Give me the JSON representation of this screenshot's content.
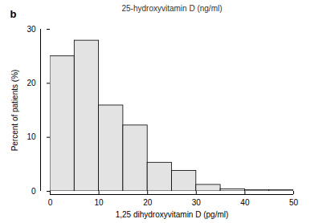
{
  "chart_data": {
    "type": "histogram",
    "title": "b",
    "annotations": [
      "25-hydroxyvitamin D (ng/ml)"
    ],
    "xlabel": "1,25 dihydroxyvitamin D (pg/ml)",
    "ylabel": "Percent of patients (%)",
    "bins": [
      0,
      5,
      10,
      15,
      20,
      25,
      30,
      35,
      40,
      45,
      50
    ],
    "values": [
      25,
      27.9,
      15.9,
      12.2,
      5.3,
      3.8,
      1.2,
      0.4,
      0.2,
      0.2
    ],
    "color": "#e3e3e3",
    "xlim": [
      0,
      50
    ],
    "xticks": [
      0,
      10,
      20,
      30,
      40,
      50
    ],
    "ylim": [
      0,
      30
    ],
    "yticks": [
      0,
      10,
      20,
      30
    ],
    "grid": false
  }
}
